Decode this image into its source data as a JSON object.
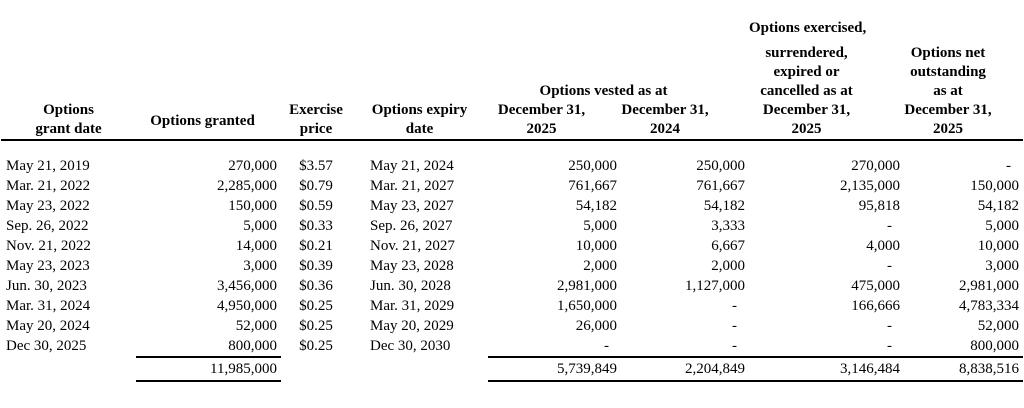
{
  "header": {
    "grant_date": [
      "Options",
      "grant date"
    ],
    "granted": [
      "Options granted"
    ],
    "price": [
      "Exercise",
      "price"
    ],
    "expiry": [
      "Options expiry",
      "date"
    ],
    "vested_group": "Options vested as at",
    "vested_2025": [
      "December 31,",
      "2025"
    ],
    "vested_2024": [
      "December 31,",
      "2024"
    ],
    "exercised": [
      "Options exercised,",
      "surrendered,",
      "expired or",
      "cancelled as at",
      "December 31,",
      "2025"
    ],
    "net": [
      "Options net",
      "outstanding",
      "as at",
      "December 31,",
      "2025"
    ]
  },
  "rows": [
    {
      "grant_date": "May 21, 2019",
      "granted": "270,000",
      "price": "$3.57",
      "expiry": "May 21, 2024",
      "vested_2025": "250,000",
      "vested_2024": "250,000",
      "exercised": "270,000",
      "net": "-"
    },
    {
      "grant_date": "Mar. 21, 2022",
      "granted": "2,285,000",
      "price": "$0.79",
      "expiry": "Mar. 21, 2027",
      "vested_2025": "761,667",
      "vested_2024": "761,667",
      "exercised": "2,135,000",
      "net": "150,000"
    },
    {
      "grant_date": "May 23, 2022",
      "granted": "150,000",
      "price": "$0.59",
      "expiry": "May 23, 2027",
      "vested_2025": "54,182",
      "vested_2024": "54,182",
      "exercised": "95,818",
      "net": "54,182"
    },
    {
      "grant_date": "Sep. 26, 2022",
      "granted": "5,000",
      "price": "$0.33",
      "expiry": "Sep. 26, 2027",
      "vested_2025": "5,000",
      "vested_2024": "3,333",
      "exercised": "-",
      "net": "5,000"
    },
    {
      "grant_date": "Nov. 21, 2022",
      "granted": "14,000",
      "price": "$0.21",
      "expiry": "Nov. 21, 2027",
      "vested_2025": "10,000",
      "vested_2024": "6,667",
      "exercised": "4,000",
      "net": "10,000"
    },
    {
      "grant_date": "May 23, 2023",
      "granted": "3,000",
      "price": "$0.39",
      "expiry": "May 23, 2028",
      "vested_2025": "2,000",
      "vested_2024": "2,000",
      "exercised": "-",
      "net": "3,000"
    },
    {
      "grant_date": "Jun. 30, 2023",
      "granted": "3,456,000",
      "price": "$0.36",
      "expiry": "Jun. 30, 2028",
      "vested_2025": "2,981,000",
      "vested_2024": "1,127,000",
      "exercised": "475,000",
      "net": "2,981,000"
    },
    {
      "grant_date": "Mar. 31, 2024",
      "granted": "4,950,000",
      "price": "$0.25",
      "expiry": "Mar. 31, 2029",
      "vested_2025": "1,650,000",
      "vested_2024": "-",
      "exercised": "166,666",
      "net": "4,783,334"
    },
    {
      "grant_date": "May 20, 2024",
      "granted": "52,000",
      "price": "$0.25",
      "expiry": "May 20, 2029",
      "vested_2025": "26,000",
      "vested_2024": "-",
      "exercised": "-",
      "net": "52,000"
    },
    {
      "grant_date": "Dec 30, 2025",
      "granted": "800,000",
      "price": "$0.25",
      "expiry": "Dec 30, 2030",
      "vested_2025": "-",
      "vested_2024": "-",
      "exercised": "-",
      "net": "800,000"
    }
  ],
  "totals": {
    "granted": "11,985,000",
    "vested_2025": "5,739,849",
    "vested_2024": "2,204,849",
    "exercised": "3,146,484",
    "net": "8,838,516"
  }
}
